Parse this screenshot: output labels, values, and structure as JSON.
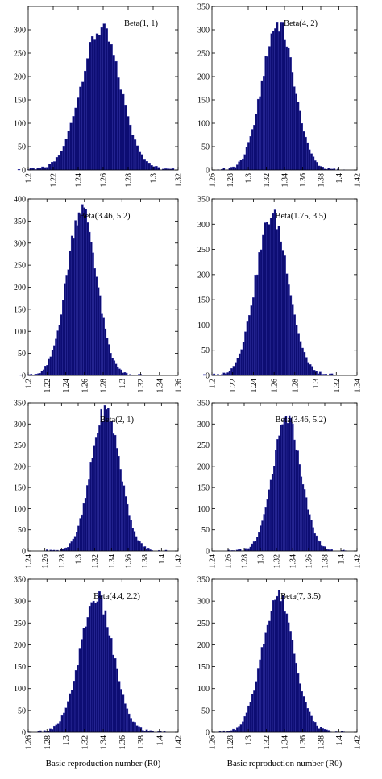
{
  "chart_data": [
    {
      "type": "bar",
      "panel": "1",
      "legend": "Beta(1, 1)",
      "center": 1.258,
      "sd": 0.0158,
      "peak": 318,
      "yticks": [
        0,
        50,
        100,
        150,
        200,
        250,
        300
      ],
      "ylim": [
        0,
        350
      ],
      "xticks": [
        "1.2",
        "1.22",
        "1.24",
        "1.26",
        "1.28",
        "1.3",
        "1.32"
      ],
      "xlim": [
        1.2,
        1.32
      ],
      "xlabel": ""
    },
    {
      "type": "bar",
      "panel": "2",
      "legend": "Beta(4, 2)",
      "center": 1.333,
      "sd": 0.0175,
      "peak": 330,
      "yticks": [
        0,
        50,
        100,
        150,
        200,
        250,
        300,
        350
      ],
      "ylim": [
        0,
        350
      ],
      "xticks": [
        "1.26",
        "1.28",
        "1.3",
        "1.32",
        "1.34",
        "1.36",
        "1.38",
        "1.4",
        "1.42"
      ],
      "xlim": [
        1.26,
        1.42
      ],
      "xlabel": ""
    },
    {
      "type": "bar",
      "panel": "3",
      "legend": "Beta(3.46, 5.2)",
      "center": 1.257,
      "sd": 0.0157,
      "peak": 398,
      "yticks": [
        0,
        50,
        100,
        150,
        200,
        250,
        300,
        350,
        400
      ],
      "ylim": [
        0,
        400
      ],
      "xticks": [
        "1.2",
        "1.22",
        "1.24",
        "1.26",
        "1.28",
        "1.3",
        "1.32",
        "1.34",
        "1.36"
      ],
      "xlim": [
        1.2,
        1.36
      ],
      "xlabel": ""
    },
    {
      "type": "bar",
      "panel": "4",
      "legend": "Beta(1.75, 3.5)",
      "center": 1.258,
      "sd": 0.0158,
      "peak": 332,
      "yticks": [
        0,
        50,
        100,
        150,
        200,
        250,
        300,
        350
      ],
      "ylim": [
        0,
        350
      ],
      "xticks": [
        "1.2",
        "1.22",
        "1.24",
        "1.26",
        "1.28",
        "1.3",
        "1.32",
        "1.34"
      ],
      "xlim": [
        1.2,
        1.34
      ],
      "xlabel": ""
    },
    {
      "type": "bar",
      "panel": "5",
      "legend": "Beta(2, 1)",
      "center": 1.333,
      "sd": 0.0175,
      "peak": 348,
      "yticks": [
        0,
        50,
        100,
        150,
        200,
        250,
        300,
        350
      ],
      "ylim": [
        0,
        350
      ],
      "xticks": [
        "1.24",
        "1.26",
        "1.28",
        "1.3",
        "1.32",
        "1.34",
        "1.36",
        "1.38",
        "1.4",
        "1.42"
      ],
      "xlim": [
        1.24,
        1.42
      ],
      "xlabel": ""
    },
    {
      "type": "bar",
      "panel": "6",
      "legend": "Beta(3.46, 5.2)",
      "center": 1.333,
      "sd": 0.0175,
      "peak": 328,
      "yticks": [
        0,
        50,
        100,
        150,
        200,
        250,
        300,
        350
      ],
      "ylim": [
        0,
        350
      ],
      "xticks": [
        "1.24",
        "1.26",
        "1.28",
        "1.3",
        "1.32",
        "1.34",
        "1.36",
        "1.38",
        "1.4",
        "1.42"
      ],
      "xlim": [
        1.24,
        1.42
      ],
      "xlabel": ""
    },
    {
      "type": "bar",
      "panel": "7",
      "legend": "Beta(4.4, 2.2)",
      "center": 1.333,
      "sd": 0.0175,
      "peak": 325,
      "yticks": [
        0,
        50,
        100,
        150,
        200,
        250,
        300,
        350
      ],
      "ylim": [
        0,
        350
      ],
      "xticks": [
        "1.26",
        "1.28",
        "1.3",
        "1.32",
        "1.34",
        "1.36",
        "1.38",
        "1.4",
        "1.42"
      ],
      "xlim": [
        1.26,
        1.42
      ],
      "xlabel": "Basic reproduction number (R0)"
    },
    {
      "type": "bar",
      "panel": "8",
      "legend": "Beta(7, 3.5)",
      "center": 1.333,
      "sd": 0.0175,
      "peak": 330,
      "yticks": [
        0,
        50,
        100,
        150,
        200,
        250,
        300,
        350
      ],
      "ylim": [
        0,
        350
      ],
      "xticks": [
        "1.26",
        "1.28",
        "1.3",
        "1.32",
        "1.34",
        "1.36",
        "1.38",
        "1.4",
        "1.42"
      ],
      "xlim": [
        1.26,
        1.42
      ],
      "xlabel": "Basic reproduction number (R0)"
    }
  ]
}
